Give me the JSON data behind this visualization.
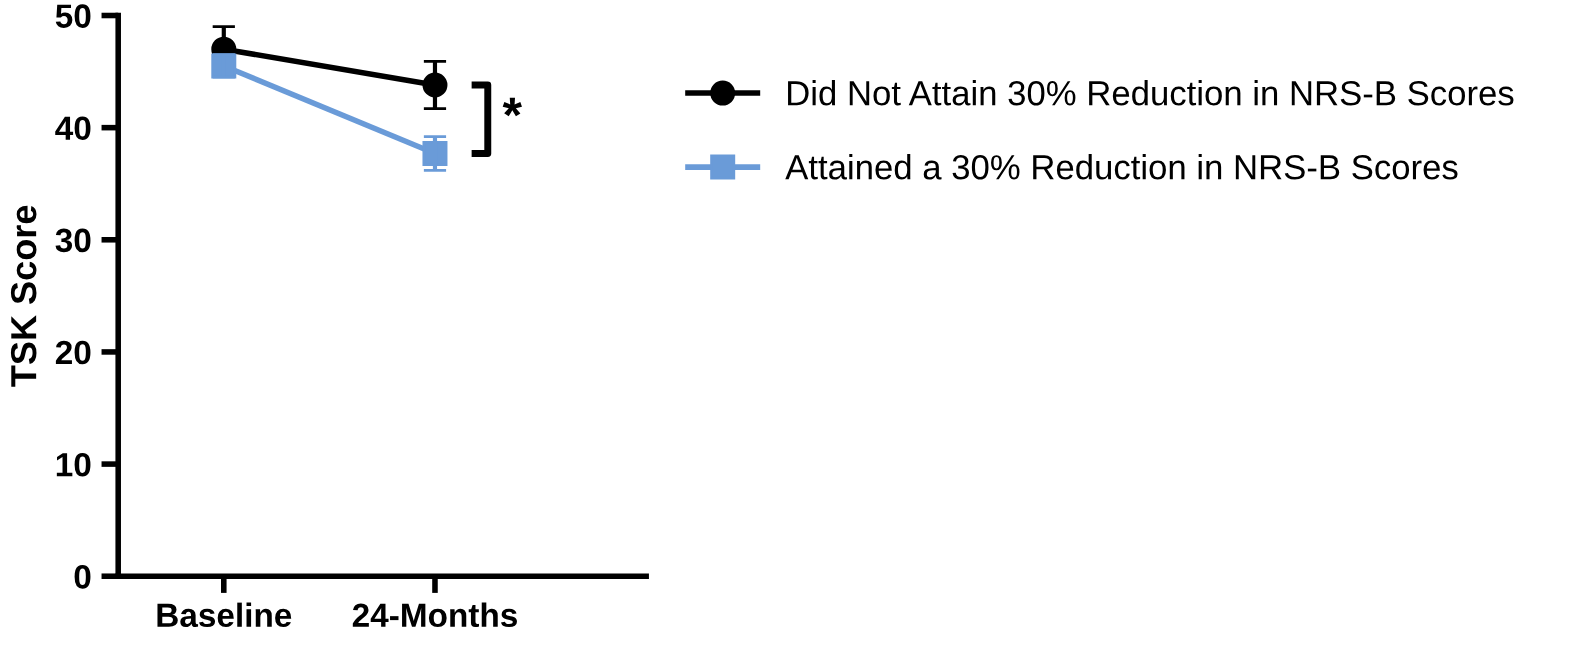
{
  "chart_data": {
    "type": "line",
    "ylabel": "TSK Score",
    "categories": [
      "Baseline",
      "24-Months"
    ],
    "series": [
      {
        "name": "Did Not Attain 30% Reduction in NRS-B Scores",
        "color": "#000000",
        "marker": "circle",
        "values": [
          47.0,
          43.8
        ],
        "errors": [
          2.0,
          2.1
        ]
      },
      {
        "name": "Attained a 30% Reduction in NRS-B Scores",
        "color": "#6a9bd8",
        "marker": "square",
        "values": [
          45.5,
          37.7
        ],
        "errors": [
          1.0,
          1.5
        ]
      }
    ],
    "ylim": [
      0,
      50
    ],
    "yticks": [
      0,
      10,
      20,
      30,
      40,
      50
    ],
    "grid": false,
    "legend": "right",
    "line_style": "solid",
    "annotations": [
      "*"
    ]
  }
}
